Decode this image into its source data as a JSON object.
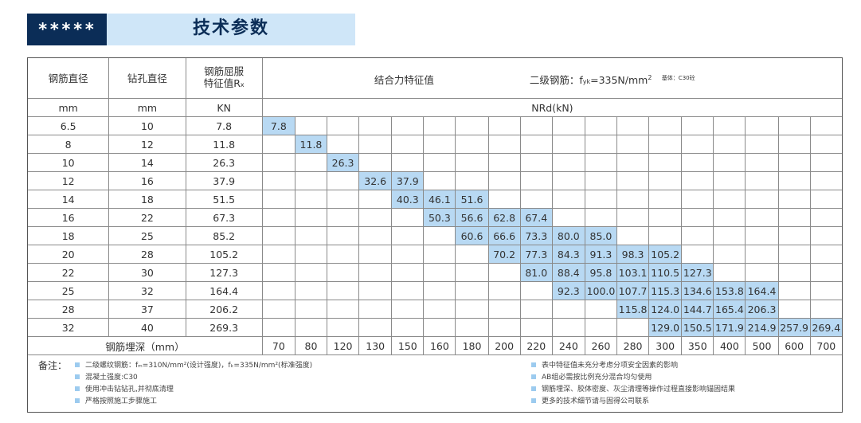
{
  "header": {
    "stars": "*****",
    "title": "技术参数"
  },
  "table": {
    "col_rebar_diameter": "钢筋直径",
    "col_hole_diameter": "钻孔直径",
    "col_yield_line1": "钢筋屈服",
    "col_yield_line2": "特征值R",
    "col_yield_sub": "x",
    "bond_title": "结合力特征值",
    "rebar_grade_prefix": "二级钢筋：f",
    "rebar_grade_sub": "yk",
    "rebar_grade_value": "=335N/mm",
    "rebar_grade_sup": "2",
    "base_material": "基体：C30砼",
    "unit_mm_1": "mm",
    "unit_mm_2": "mm",
    "unit_kn": "KN",
    "unit_nrd": "NRd(kN)",
    "footer_label": "钢筋埋深（mm）",
    "depths": [
      "70",
      "80",
      "120",
      "130",
      "150",
      "160",
      "180",
      "200",
      "220",
      "240",
      "260",
      "280",
      "300",
      "350",
      "400",
      "500",
      "600",
      "700"
    ],
    "rows": [
      {
        "d": "6.5",
        "hole": "10",
        "yield": "7.8",
        "start": 0,
        "vals": [
          "7.8"
        ]
      },
      {
        "d": "8",
        "hole": "12",
        "yield": "11.8",
        "start": 1,
        "vals": [
          "11.8"
        ]
      },
      {
        "d": "10",
        "hole": "14",
        "yield": "26.3",
        "start": 2,
        "vals": [
          "26.3"
        ]
      },
      {
        "d": "12",
        "hole": "16",
        "yield": "37.9",
        "start": 3,
        "vals": [
          "32.6",
          "37.9"
        ]
      },
      {
        "d": "14",
        "hole": "18",
        "yield": "51.5",
        "start": 4,
        "vals": [
          "40.3",
          "46.1",
          "51.6"
        ]
      },
      {
        "d": "16",
        "hole": "22",
        "yield": "67.3",
        "start": 5,
        "vals": [
          "50.3",
          "56.6",
          "62.8",
          "67.4"
        ]
      },
      {
        "d": "18",
        "hole": "25",
        "yield": "85.2",
        "start": 6,
        "vals": [
          "60.6",
          "66.6",
          "73.3",
          "80.0",
          "85.0"
        ]
      },
      {
        "d": "20",
        "hole": "28",
        "yield": "105.2",
        "start": 7,
        "vals": [
          "70.2",
          "77.3",
          "84.3",
          "91.3",
          "98.3",
          "105.2"
        ]
      },
      {
        "d": "22",
        "hole": "30",
        "yield": "127.3",
        "start": 8,
        "vals": [
          "81.0",
          "88.4",
          "95.8",
          "103.1",
          "110.5",
          "127.3"
        ]
      },
      {
        "d": "25",
        "hole": "32",
        "yield": "164.4",
        "start": 9,
        "vals": [
          "92.3",
          "100.0",
          "107.7",
          "115.3",
          "134.6",
          "153.8",
          "164.4"
        ]
      },
      {
        "d": "28",
        "hole": "37",
        "yield": "206.2",
        "start": 11,
        "vals": [
          "115.8",
          "124.0",
          "144.7",
          "165.4",
          "206.3"
        ]
      },
      {
        "d": "32",
        "hole": "40",
        "yield": "269.3",
        "start": 12,
        "vals": [
          "129.0",
          "150.5",
          "171.9",
          "214.9",
          "257.9",
          "269.4"
        ]
      }
    ]
  },
  "notes": {
    "label": "备注：",
    "left": [
      "二级螺纹钢筋：fₘ=310N/mm²(设计强度)，fₖ=335N/mm²(标准强度)",
      "混凝土强度:C30",
      "使用冲击钻钻孔,并彻底清理",
      "严格按照施工步骤施工"
    ],
    "right": [
      "表中特征值未充分考虑分项安全因素的影响",
      "AB组必需按比例充分混合均匀使用",
      "钢筋埋深、胶体密度、灰尘清理等操作过程直接影响锚固结果",
      "更多的技术细节请与固得公司联系"
    ]
  },
  "colors": {
    "header_dark": "#0b2d57",
    "header_light": "#cfe6f8",
    "highlight": "#b8d9f3"
  }
}
